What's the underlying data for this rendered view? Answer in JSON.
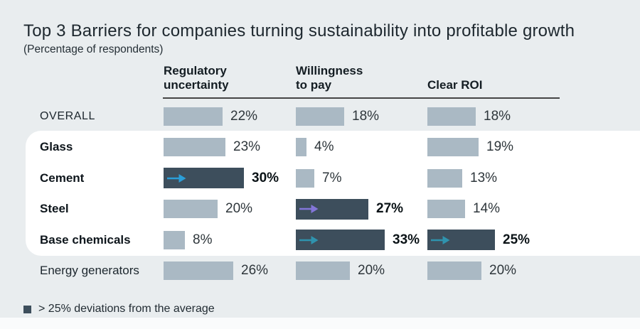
{
  "title": "Top 3 Barriers for companies turning sustainability into profitable growth",
  "subtitle": "(Percentage of respondents)",
  "legend": {
    "label": "> 25% deviations from the average"
  },
  "colors": {
    "background": "#e9edef",
    "panel": "#ffffff",
    "bar_light": "#aab9c4",
    "bar_dark": "#3d4e5c",
    "arrow_blue": "#2b9ed8",
    "arrow_purple": "#8376d9",
    "arrow_teal": "#2f93ae"
  },
  "chart_data": {
    "type": "bar",
    "title": "Top 3 Barriers for companies turning sustainability into profitable growth",
    "subtitle": "(Percentage of respondents)",
    "unit": "%",
    "xlim": [
      0,
      35
    ],
    "columns": [
      "Regulatory\nuncertainty",
      "Willingness\nto pay",
      "Clear ROI"
    ],
    "rows": [
      {
        "label": "OVERALL",
        "emphasis": false,
        "values": [
          {
            "value": 22,
            "label": "22%",
            "highlight": false
          },
          {
            "value": 18,
            "label": "18%",
            "highlight": false
          },
          {
            "value": 18,
            "label": "18%",
            "highlight": false
          }
        ]
      },
      {
        "label": "Glass",
        "emphasis": true,
        "values": [
          {
            "value": 23,
            "label": "23%",
            "highlight": false
          },
          {
            "value": 4,
            "label": "4%",
            "highlight": false
          },
          {
            "value": 19,
            "label": "19%",
            "highlight": false
          }
        ]
      },
      {
        "label": "Cement",
        "emphasis": true,
        "values": [
          {
            "value": 30,
            "label": "30%",
            "highlight": true,
            "arrow": "arrow_blue"
          },
          {
            "value": 7,
            "label": "7%",
            "highlight": false
          },
          {
            "value": 13,
            "label": "13%",
            "highlight": false
          }
        ]
      },
      {
        "label": "Steel",
        "emphasis": true,
        "values": [
          {
            "value": 20,
            "label": "20%",
            "highlight": false
          },
          {
            "value": 27,
            "label": "27%",
            "highlight": true,
            "arrow": "arrow_purple"
          },
          {
            "value": 14,
            "label": "14%",
            "highlight": false
          }
        ]
      },
      {
        "label": "Base chemicals",
        "emphasis": true,
        "values": [
          {
            "value": 8,
            "label": "8%",
            "highlight": false
          },
          {
            "value": 33,
            "label": "33%",
            "highlight": true,
            "arrow": "arrow_teal"
          },
          {
            "value": 25,
            "label": "25%",
            "highlight": true,
            "arrow": "arrow_teal"
          }
        ]
      },
      {
        "label": "Energy generators",
        "emphasis": false,
        "values": [
          {
            "value": 26,
            "label": "26%",
            "highlight": false
          },
          {
            "value": 20,
            "label": "20%",
            "highlight": false
          },
          {
            "value": 20,
            "label": "20%",
            "highlight": false
          }
        ]
      }
    ],
    "legend_note": "> 25% deviations from the average",
    "highlight_band_rows": [
      "Glass",
      "Cement",
      "Steel",
      "Base chemicals"
    ]
  }
}
